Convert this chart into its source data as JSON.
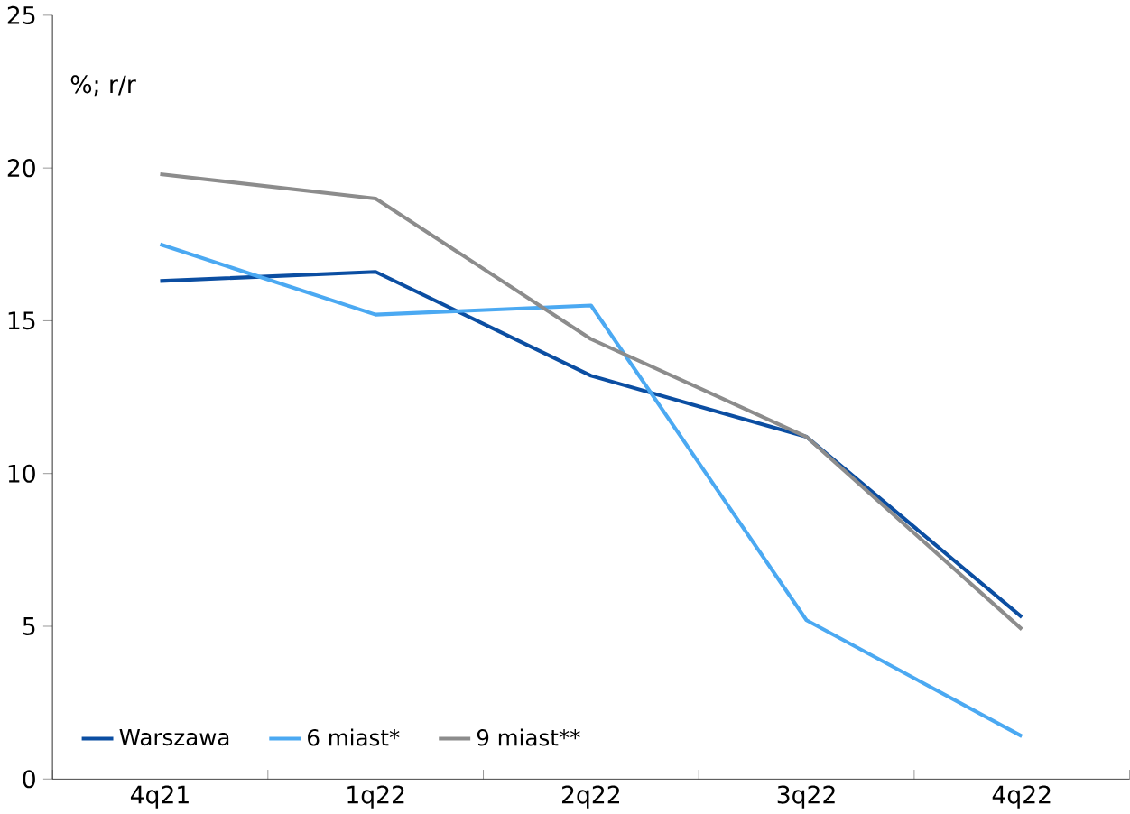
{
  "chart_data": {
    "type": "line",
    "ylabel": "%; r/r",
    "categories": [
      "4q21",
      "1q22",
      "2q22",
      "3q22",
      "4q22"
    ],
    "series": [
      {
        "name": "Warszawa",
        "color": "#0b4ea2",
        "values": [
          16.3,
          16.6,
          13.2,
          11.2,
          5.3
        ]
      },
      {
        "name": "6 miast*",
        "color": "#4ba9f2",
        "values": [
          17.5,
          15.2,
          15.5,
          5.2,
          1.4
        ]
      },
      {
        "name": "9 miast**",
        "color": "#8c8c8c",
        "values": [
          19.8,
          19.0,
          14.4,
          11.2,
          4.9
        ]
      }
    ],
    "ylim": [
      0,
      25
    ],
    "yticks": [
      0,
      5,
      10,
      15,
      20,
      25
    ],
    "legend": "bottom left",
    "grid": false,
    "marker": "none",
    "line_style": "solid"
  }
}
